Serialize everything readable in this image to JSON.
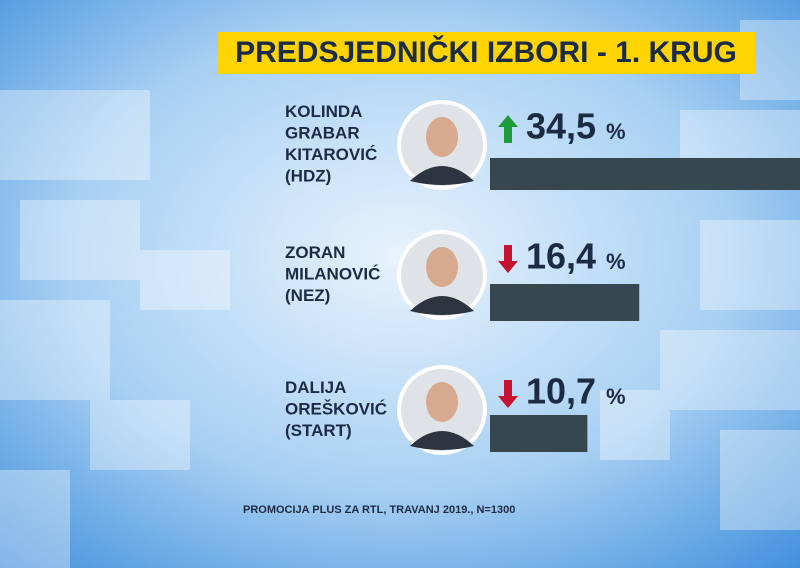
{
  "chart_data": {
    "type": "bar",
    "orientation": "horizontal",
    "title": "PREDSJEDNIČKI IZBORI - 1. KRUG",
    "categories": [
      [
        "KOLINDA",
        "GRABAR",
        "KITAROVIĆ",
        "(HDZ)"
      ],
      [
        "ZORAN",
        "MILANOVIĆ",
        "(NEZ)"
      ],
      [
        "DALIJA",
        "OREŠKOVIĆ",
        "(START)"
      ]
    ],
    "values": [
      34.5,
      16.4,
      10.7
    ],
    "value_labels": [
      "34,5",
      "16,4",
      "10,7"
    ],
    "unit": "%",
    "trends": [
      "up",
      "down",
      "down"
    ],
    "trend_colors": {
      "up": "#1e9b3b",
      "down": "#c4122f"
    },
    "color": "#37474f",
    "source": "PROMOCIJA PLUS ZA RTL, TRAVANJ 2019., N=1300"
  }
}
